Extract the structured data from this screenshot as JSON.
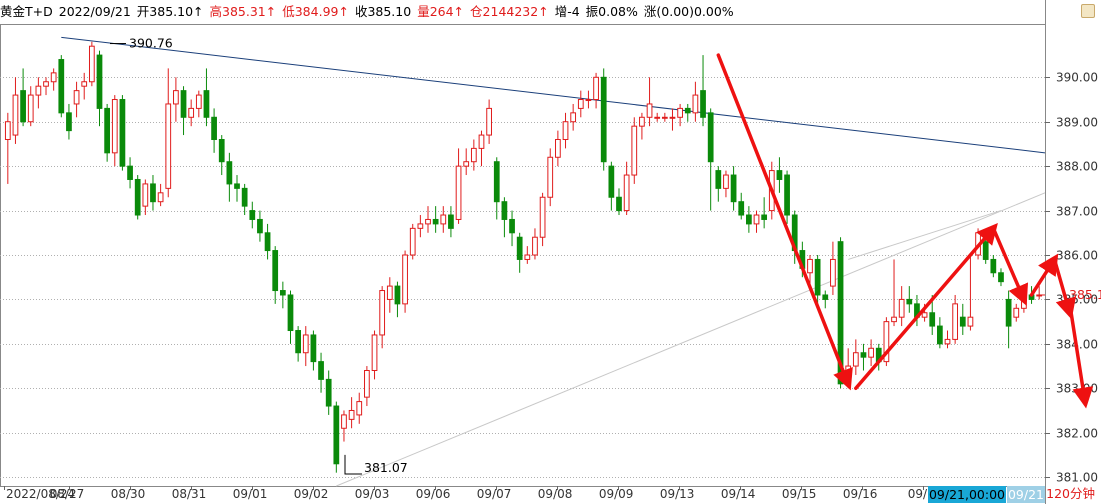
{
  "header": {
    "symbol": "黄金T+D",
    "date": "2022/09/21",
    "open": "开385.10↑",
    "high": "高385.31↑",
    "low": "低384.99↑",
    "close": "收385.10",
    "volume": "量264↑",
    "position": "仓2144232↑",
    "change": "增-4",
    "amplitude": "振0.08%",
    "rise": "涨(0.00)0.00%"
  },
  "timeframe_label": "120分钟",
  "cursor_dates": [
    "09/21,00:00",
    "09/21"
  ],
  "colors": {
    "up": "#e01c1c",
    "down": "#0a8a0a",
    "trendline": "#1a3f7a",
    "arrow": "#ee1111",
    "channel": "#c8c8c8",
    "grid": "#b0b0b0"
  },
  "chart_data": {
    "type": "candlestick",
    "title": "",
    "xlabel": "",
    "ylabel": "",
    "ylim": [
      380.8,
      391.2
    ],
    "y_ticks": [
      "381.00",
      "382.00",
      "383.00",
      "384.00",
      "385.00",
      "386.00",
      "387.00",
      "388.00",
      "389.00",
      "390.00"
    ],
    "x_tick_labels": [
      "2022/08/24",
      "08/27",
      "08/30",
      "08/31",
      "09/01",
      "09/02",
      "09/03",
      "09/06",
      "09/07",
      "09/08",
      "09/09",
      "09/13",
      "09/14",
      "09/15",
      "09/16",
      "09/1",
      "09/21"
    ],
    "annotations": [
      {
        "text": "390.76",
        "value": 390.76,
        "kind": "high"
      },
      {
        "text": "381.07",
        "value": 381.07,
        "kind": "low"
      },
      {
        "text": "385.10",
        "value": 385.1,
        "kind": "current"
      }
    ],
    "candles": [
      {
        "o": 388.6,
        "c": 389.0,
        "h": 389.2,
        "l": 387.6
      },
      {
        "o": 388.7,
        "c": 389.6,
        "h": 390.0,
        "l": 388.5
      },
      {
        "o": 389.7,
        "c": 389.0,
        "h": 390.2,
        "l": 388.9
      },
      {
        "o": 389.0,
        "c": 389.6,
        "h": 389.8,
        "l": 388.9
      },
      {
        "o": 389.6,
        "c": 389.8,
        "h": 390.0,
        "l": 389.3
      },
      {
        "o": 389.8,
        "c": 389.9,
        "h": 390.0,
        "l": 389.6
      },
      {
        "o": 389.9,
        "c": 390.1,
        "h": 390.2,
        "l": 389.7
      },
      {
        "o": 390.4,
        "c": 389.2,
        "h": 390.5,
        "l": 389.1
      },
      {
        "o": 389.2,
        "c": 388.8,
        "h": 389.4,
        "l": 388.6
      },
      {
        "o": 389.4,
        "c": 389.7,
        "h": 389.9,
        "l": 389.1
      },
      {
        "o": 389.8,
        "c": 389.9,
        "h": 390.1,
        "l": 389.5
      },
      {
        "o": 389.9,
        "c": 390.7,
        "h": 390.8,
        "l": 389.8
      },
      {
        "o": 390.5,
        "c": 389.3,
        "h": 390.6,
        "l": 388.9
      },
      {
        "o": 389.3,
        "c": 388.3,
        "h": 389.4,
        "l": 388.1
      },
      {
        "o": 388.3,
        "c": 389.5,
        "h": 389.6,
        "l": 388.0
      },
      {
        "o": 389.5,
        "c": 388.0,
        "h": 389.6,
        "l": 387.9
      },
      {
        "o": 388.0,
        "c": 387.7,
        "h": 388.2,
        "l": 387.5
      },
      {
        "o": 387.7,
        "c": 386.9,
        "h": 387.8,
        "l": 386.8
      },
      {
        "o": 387.1,
        "c": 387.6,
        "h": 387.7,
        "l": 386.9
      },
      {
        "o": 387.6,
        "c": 387.2,
        "h": 387.8,
        "l": 387.0
      },
      {
        "o": 387.2,
        "c": 387.4,
        "h": 387.6,
        "l": 387.1
      },
      {
        "o": 387.5,
        "c": 389.4,
        "h": 390.2,
        "l": 387.3
      },
      {
        "o": 389.4,
        "c": 389.7,
        "h": 390.0,
        "l": 389.0
      },
      {
        "o": 389.7,
        "c": 389.1,
        "h": 389.8,
        "l": 388.7
      },
      {
        "o": 389.1,
        "c": 389.3,
        "h": 389.5,
        "l": 388.9
      },
      {
        "o": 389.3,
        "c": 389.6,
        "h": 389.7,
        "l": 389.1
      },
      {
        "o": 389.7,
        "c": 389.1,
        "h": 390.2,
        "l": 388.9
      },
      {
        "o": 389.1,
        "c": 388.6,
        "h": 389.3,
        "l": 388.3
      },
      {
        "o": 388.6,
        "c": 388.1,
        "h": 388.7,
        "l": 387.8
      },
      {
        "o": 388.1,
        "c": 387.6,
        "h": 388.3,
        "l": 387.2
      },
      {
        "o": 387.6,
        "c": 387.5,
        "h": 387.8,
        "l": 387.2
      },
      {
        "o": 387.5,
        "c": 387.1,
        "h": 387.6,
        "l": 386.9
      },
      {
        "o": 387.0,
        "c": 386.8,
        "h": 387.2,
        "l": 386.6
      },
      {
        "o": 386.8,
        "c": 386.5,
        "h": 387.0,
        "l": 386.3
      },
      {
        "o": 386.5,
        "c": 386.1,
        "h": 386.7,
        "l": 385.9
      },
      {
        "o": 386.1,
        "c": 385.2,
        "h": 386.2,
        "l": 384.9
      },
      {
        "o": 385.2,
        "c": 385.1,
        "h": 385.4,
        "l": 384.8
      },
      {
        "o": 385.1,
        "c": 384.3,
        "h": 385.2,
        "l": 384.0
      },
      {
        "o": 384.3,
        "c": 383.8,
        "h": 384.4,
        "l": 383.6
      },
      {
        "o": 383.8,
        "c": 384.2,
        "h": 384.4,
        "l": 383.5
      },
      {
        "o": 384.2,
        "c": 383.6,
        "h": 384.3,
        "l": 383.4
      },
      {
        "o": 383.6,
        "c": 383.2,
        "h": 383.8,
        "l": 382.9
      },
      {
        "o": 383.2,
        "c": 382.6,
        "h": 383.4,
        "l": 382.4
      },
      {
        "o": 382.6,
        "c": 381.3,
        "h": 382.7,
        "l": 381.1
      },
      {
        "o": 382.1,
        "c": 382.4,
        "h": 382.5,
        "l": 381.8
      },
      {
        "o": 382.3,
        "c": 382.5,
        "h": 382.8,
        "l": 382.1
      },
      {
        "o": 382.4,
        "c": 382.7,
        "h": 382.9,
        "l": 382.2
      },
      {
        "o": 382.8,
        "c": 383.4,
        "h": 383.5,
        "l": 382.6
      },
      {
        "o": 383.4,
        "c": 384.2,
        "h": 384.3,
        "l": 383.2
      },
      {
        "o": 384.2,
        "c": 385.2,
        "h": 385.3,
        "l": 383.9
      },
      {
        "o": 385.0,
        "c": 385.3,
        "h": 385.5,
        "l": 384.7
      },
      {
        "o": 385.3,
        "c": 384.9,
        "h": 385.4,
        "l": 384.6
      },
      {
        "o": 384.9,
        "c": 386.0,
        "h": 386.1,
        "l": 384.7
      },
      {
        "o": 386.0,
        "c": 386.6,
        "h": 386.7,
        "l": 385.9
      },
      {
        "o": 386.6,
        "c": 386.7,
        "h": 386.9,
        "l": 386.4
      },
      {
        "o": 386.7,
        "c": 386.8,
        "h": 387.1,
        "l": 386.5
      },
      {
        "o": 386.8,
        "c": 386.7,
        "h": 387.1,
        "l": 386.5
      },
      {
        "o": 386.7,
        "c": 386.9,
        "h": 387.1,
        "l": 386.5
      },
      {
        "o": 386.9,
        "c": 386.6,
        "h": 387.1,
        "l": 386.4
      },
      {
        "o": 386.8,
        "c": 388.0,
        "h": 388.4,
        "l": 386.7
      },
      {
        "o": 388.0,
        "c": 388.1,
        "h": 388.4,
        "l": 387.8
      },
      {
        "o": 388.1,
        "c": 388.4,
        "h": 388.6,
        "l": 387.9
      },
      {
        "o": 388.4,
        "c": 388.7,
        "h": 388.8,
        "l": 388.0
      },
      {
        "o": 388.7,
        "c": 389.3,
        "h": 389.5,
        "l": 388.5
      },
      {
        "o": 388.1,
        "c": 387.2,
        "h": 388.2,
        "l": 386.8
      },
      {
        "o": 387.2,
        "c": 386.8,
        "h": 387.3,
        "l": 386.4
      },
      {
        "o": 386.8,
        "c": 386.5,
        "h": 387.0,
        "l": 386.2
      },
      {
        "o": 386.4,
        "c": 385.9,
        "h": 386.5,
        "l": 385.6
      },
      {
        "o": 385.9,
        "c": 386.0,
        "h": 386.2,
        "l": 385.8
      },
      {
        "o": 386.0,
        "c": 386.4,
        "h": 386.6,
        "l": 385.9
      },
      {
        "o": 386.4,
        "c": 387.3,
        "h": 387.4,
        "l": 386.2
      },
      {
        "o": 387.3,
        "c": 388.2,
        "h": 388.4,
        "l": 387.1
      },
      {
        "o": 388.2,
        "c": 388.6,
        "h": 388.8,
        "l": 388.0
      },
      {
        "o": 388.6,
        "c": 389.0,
        "h": 389.2,
        "l": 388.4
      },
      {
        "o": 389.0,
        "c": 389.2,
        "h": 389.4,
        "l": 388.8
      },
      {
        "o": 389.3,
        "c": 389.5,
        "h": 389.7,
        "l": 389.1
      },
      {
        "o": 389.5,
        "c": 389.5,
        "h": 389.7,
        "l": 389.3
      },
      {
        "o": 389.5,
        "c": 390.0,
        "h": 390.1,
        "l": 389.3
      },
      {
        "o": 390.0,
        "c": 388.1,
        "h": 390.2,
        "l": 387.9
      },
      {
        "o": 388.0,
        "c": 387.3,
        "h": 388.1,
        "l": 387.0
      },
      {
        "o": 387.3,
        "c": 387.0,
        "h": 387.5,
        "l": 386.9
      },
      {
        "o": 387.0,
        "c": 387.8,
        "h": 388.1,
        "l": 386.9
      },
      {
        "o": 387.8,
        "c": 388.9,
        "h": 389.1,
        "l": 387.6
      },
      {
        "o": 388.9,
        "c": 389.1,
        "h": 389.2,
        "l": 388.6
      },
      {
        "o": 389.1,
        "c": 389.4,
        "h": 390.0,
        "l": 388.9
      },
      {
        "o": 389.1,
        "c": 389.1,
        "h": 389.2,
        "l": 389.0
      },
      {
        "o": 389.1,
        "c": 389.1,
        "h": 389.2,
        "l": 389.0
      },
      {
        "o": 389.1,
        "c": 389.1,
        "h": 389.3,
        "l": 388.8
      },
      {
        "o": 389.1,
        "c": 389.3,
        "h": 389.4,
        "l": 388.9
      },
      {
        "o": 389.3,
        "c": 389.2,
        "h": 389.4,
        "l": 389.0
      },
      {
        "o": 389.2,
        "c": 389.6,
        "h": 389.9,
        "l": 389.0
      },
      {
        "o": 389.7,
        "c": 389.1,
        "h": 390.5,
        "l": 388.9
      },
      {
        "o": 389.2,
        "c": 388.1,
        "h": 389.3,
        "l": 387.0
      },
      {
        "o": 387.9,
        "c": 387.5,
        "h": 388.0,
        "l": 387.2
      },
      {
        "o": 387.5,
        "c": 387.8,
        "h": 387.9,
        "l": 387.3
      },
      {
        "o": 387.8,
        "c": 387.2,
        "h": 388.0,
        "l": 387.0
      },
      {
        "o": 387.2,
        "c": 386.9,
        "h": 387.4,
        "l": 386.8
      },
      {
        "o": 386.9,
        "c": 386.7,
        "h": 387.1,
        "l": 386.5
      },
      {
        "o": 386.7,
        "c": 386.9,
        "h": 387.0,
        "l": 386.5
      },
      {
        "o": 386.9,
        "c": 386.8,
        "h": 387.3,
        "l": 386.6
      },
      {
        "o": 387.0,
        "c": 387.9,
        "h": 388.1,
        "l": 386.8
      },
      {
        "o": 387.9,
        "c": 387.7,
        "h": 388.2,
        "l": 387.4
      },
      {
        "o": 387.8,
        "c": 386.9,
        "h": 387.9,
        "l": 386.7
      },
      {
        "o": 386.9,
        "c": 386.1,
        "h": 387.0,
        "l": 385.8
      },
      {
        "o": 386.1,
        "c": 385.7,
        "h": 386.3,
        "l": 385.5
      },
      {
        "o": 385.6,
        "c": 385.9,
        "h": 386.0,
        "l": 385.3
      },
      {
        "o": 385.9,
        "c": 385.1,
        "h": 386.0,
        "l": 384.9
      },
      {
        "o": 385.1,
        "c": 385.0,
        "h": 385.2,
        "l": 384.8
      },
      {
        "o": 385.3,
        "c": 385.9,
        "h": 386.3,
        "l": 385.1
      },
      {
        "o": 386.3,
        "c": 383.1,
        "h": 386.4,
        "l": 383.0
      },
      {
        "o": 383.2,
        "c": 383.5,
        "h": 383.9,
        "l": 383.0
      },
      {
        "o": 383.5,
        "c": 383.8,
        "h": 384.1,
        "l": 383.3
      },
      {
        "o": 383.8,
        "c": 383.7,
        "h": 384.0,
        "l": 383.4
      },
      {
        "o": 383.7,
        "c": 383.9,
        "h": 384.1,
        "l": 383.5
      },
      {
        "o": 383.9,
        "c": 383.6,
        "h": 384.0,
        "l": 383.4
      },
      {
        "o": 383.6,
        "c": 384.5,
        "h": 384.6,
        "l": 383.5
      },
      {
        "o": 384.5,
        "c": 384.6,
        "h": 385.9,
        "l": 384.4
      },
      {
        "o": 384.6,
        "c": 385.0,
        "h": 385.3,
        "l": 384.4
      },
      {
        "o": 385.0,
        "c": 384.9,
        "h": 385.3,
        "l": 384.7
      },
      {
        "o": 384.9,
        "c": 384.6,
        "h": 385.1,
        "l": 384.4
      },
      {
        "o": 384.6,
        "c": 384.7,
        "h": 384.9,
        "l": 384.5
      },
      {
        "o": 384.7,
        "c": 384.4,
        "h": 385.1,
        "l": 384.2
      },
      {
        "o": 384.4,
        "c": 384.0,
        "h": 384.6,
        "l": 383.9
      },
      {
        "o": 384.0,
        "c": 384.1,
        "h": 384.3,
        "l": 383.9
      },
      {
        "o": 384.1,
        "c": 384.9,
        "h": 385.1,
        "l": 384.0
      },
      {
        "o": 384.6,
        "c": 384.4,
        "h": 384.9,
        "l": 384.2
      },
      {
        "o": 384.4,
        "c": 384.6,
        "h": 386.0,
        "l": 384.3
      },
      {
        "o": 386.0,
        "c": 386.5,
        "h": 386.6,
        "l": 385.9
      },
      {
        "o": 386.3,
        "c": 385.9,
        "h": 386.4,
        "l": 385.8
      },
      {
        "o": 385.9,
        "c": 385.6,
        "h": 386.0,
        "l": 385.5
      },
      {
        "o": 385.6,
        "c": 385.4,
        "h": 385.7,
        "l": 385.3
      },
      {
        "o": 385.0,
        "c": 384.4,
        "h": 385.2,
        "l": 383.9
      },
      {
        "o": 384.6,
        "c": 384.8,
        "h": 384.9,
        "l": 384.5
      },
      {
        "o": 384.8,
        "c": 385.0,
        "h": 385.1,
        "l": 384.7
      },
      {
        "o": 385.1,
        "c": 385.0,
        "h": 385.3,
        "l": 384.9
      },
      {
        "o": 385.1,
        "c": 385.1,
        "h": 385.3,
        "l": 385.0
      }
    ],
    "trendlines": [
      {
        "kind": "resistance",
        "from": {
          "bar": 7,
          "price": 390.9
        },
        "to": {
          "bar": "end",
          "price": 388.3
        }
      },
      {
        "kind": "channel-lower",
        "from": {
          "bar": 43,
          "price": 380.8
        },
        "to": {
          "bar": "end",
          "price": 387.4
        }
      },
      {
        "kind": "channel-upper",
        "from": {
          "bar": 110,
          "price": 385.9
        },
        "to": {
          "bar": 130,
          "price": 387.0
        }
      }
    ],
    "arrows": [
      {
        "from": {
          "bar": 93,
          "price": 390.5
        },
        "to": {
          "bar": 110,
          "price": 383.1
        }
      },
      {
        "from": {
          "bar": 111,
          "price": 383.0
        },
        "to": {
          "bar": 129,
          "price": 386.6
        }
      },
      {
        "from": {
          "bar": 129,
          "price": 386.6
        },
        "to": {
          "bar": 133,
          "price": 385.0
        }
      },
      {
        "from": {
          "bar": 134,
          "price": 385.1
        },
        "to": {
          "bar": 137,
          "price": 385.9
        }
      },
      {
        "from": {
          "bar": 137,
          "price": 385.9
        },
        "to": {
          "bar": 139,
          "price": 384.7
        }
      },
      {
        "from": {
          "bar": 139,
          "price": 384.9
        },
        "to": {
          "bar": 141,
          "price": 382.7
        }
      }
    ]
  }
}
